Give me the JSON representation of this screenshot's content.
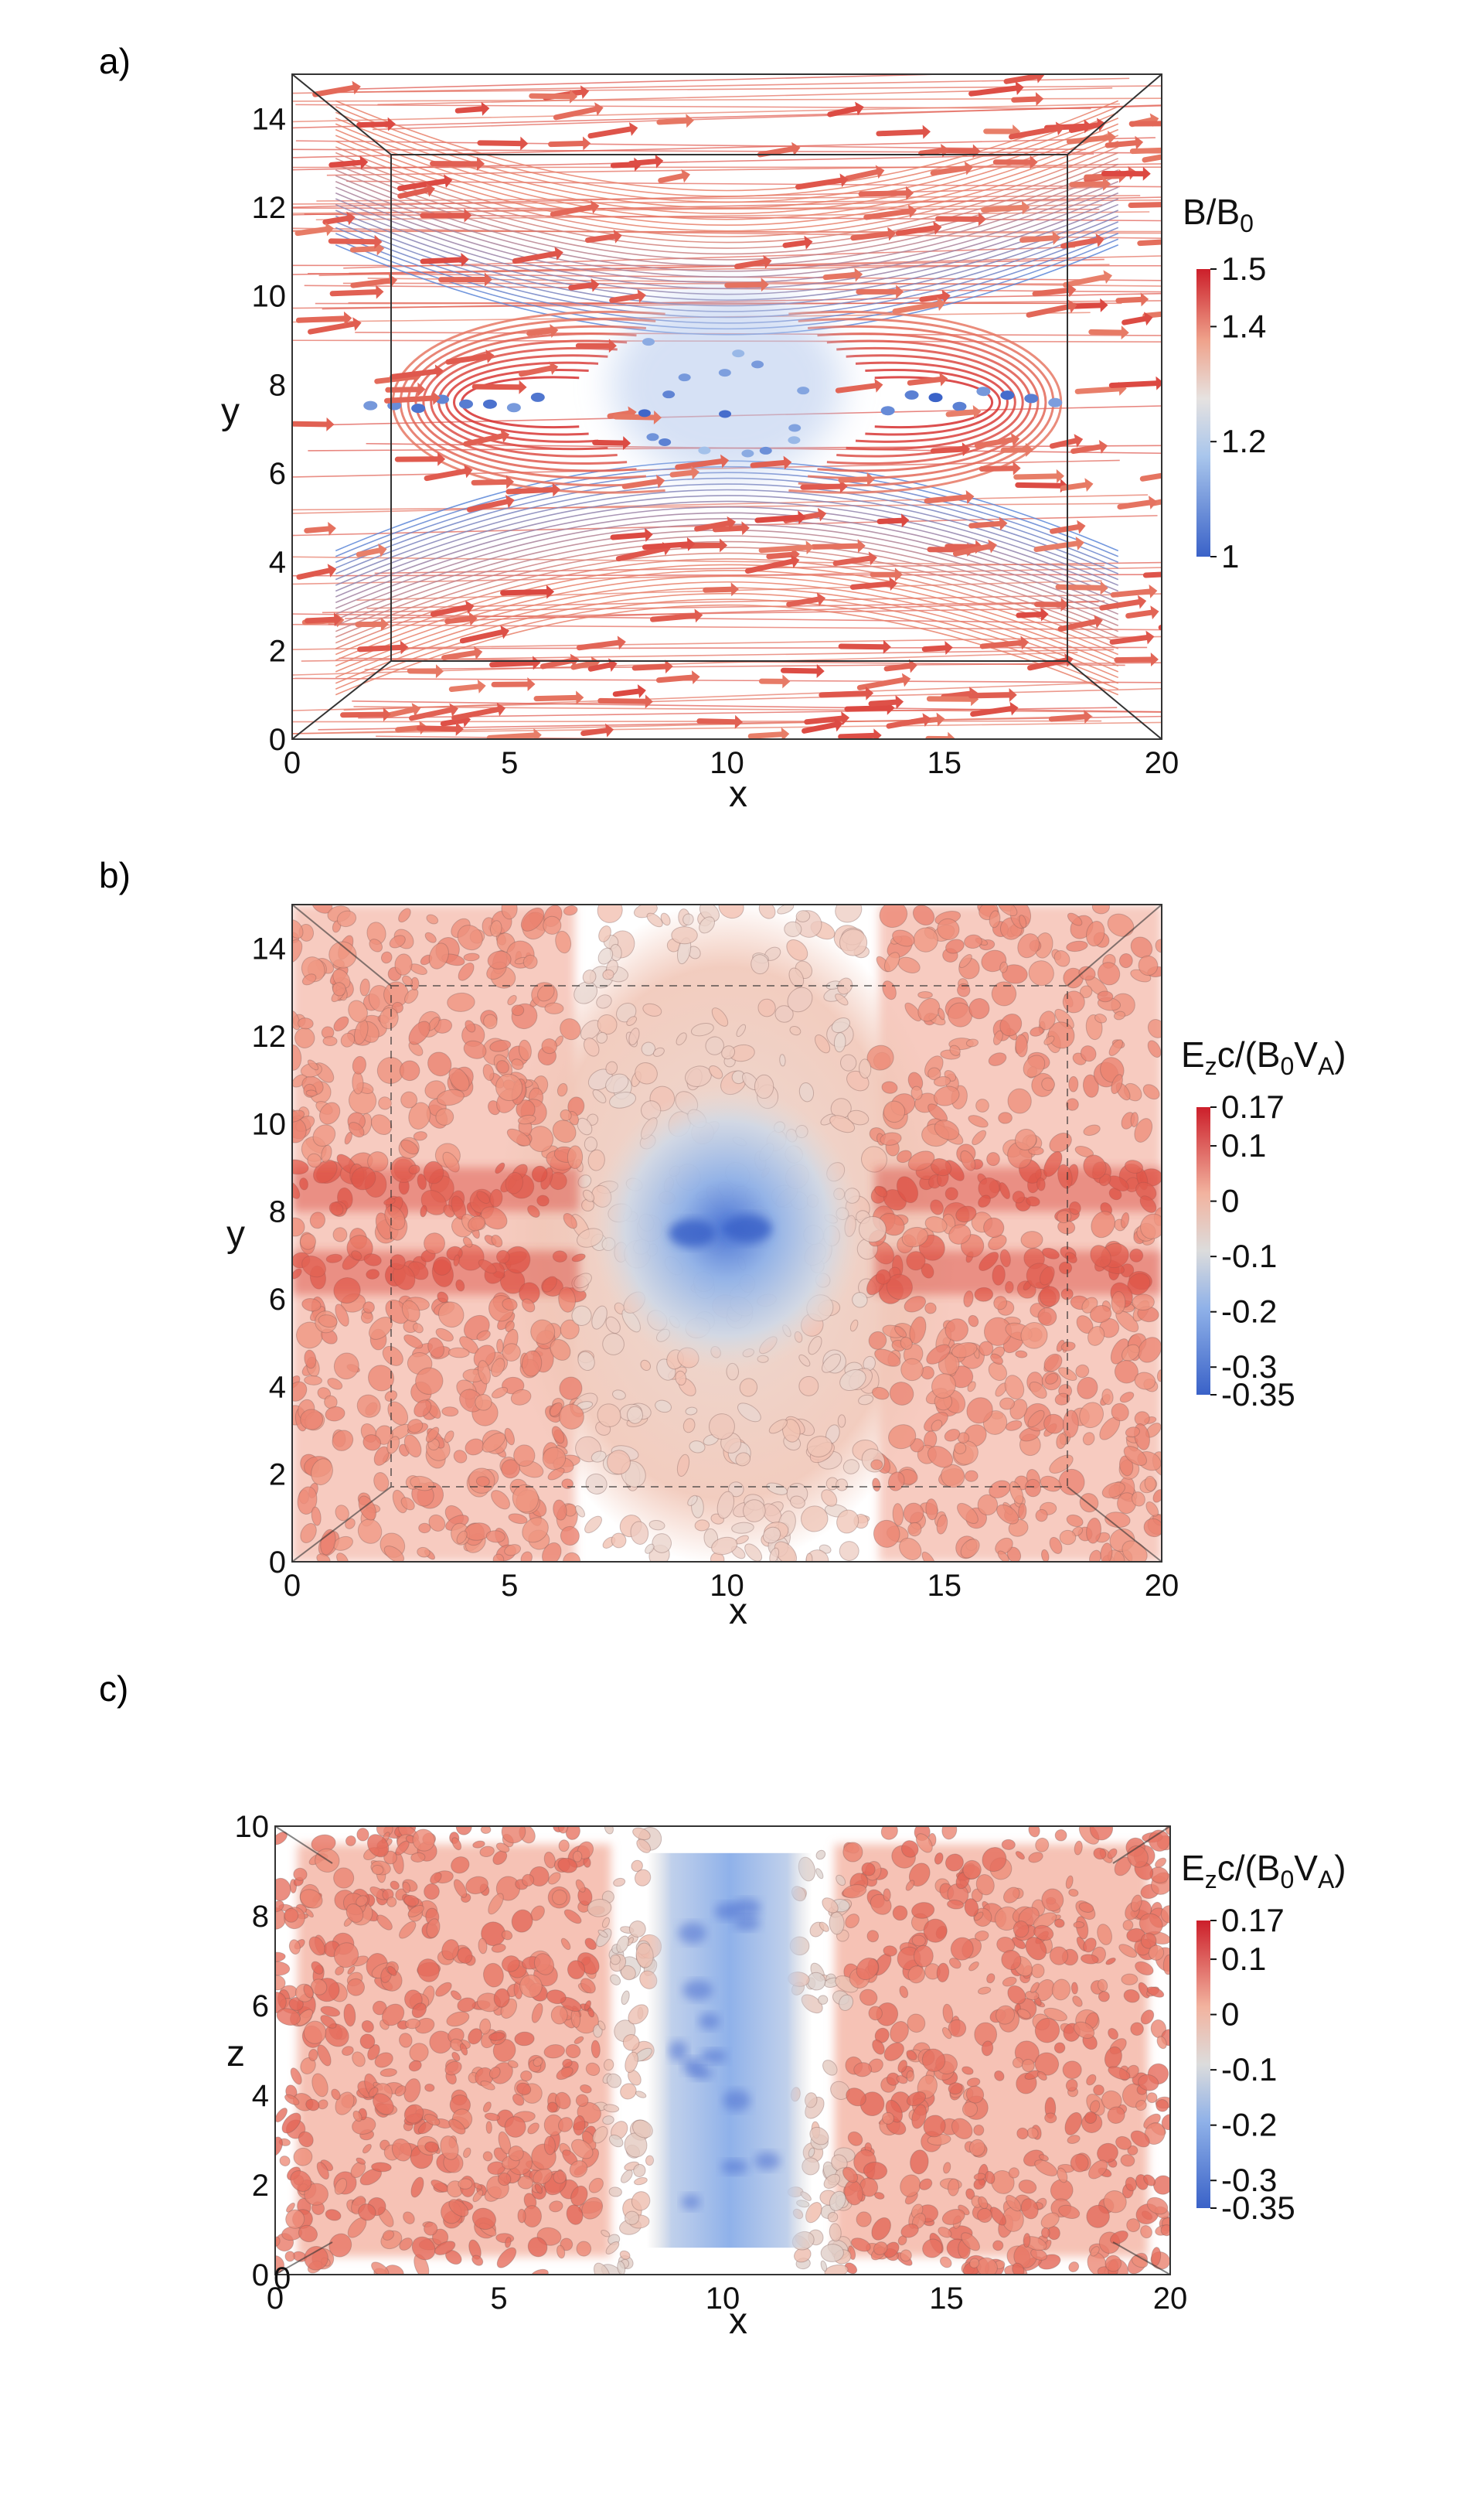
{
  "chart_data": [
    {
      "panel": "a)",
      "type": "vector-field",
      "description_field": "magnetic field streamlines and arrows",
      "xlabel": "x",
      "ylabel": "y",
      "xlim": [
        0,
        20
      ],
      "ylim": [
        0,
        15
      ],
      "xticks": [
        "0",
        "5",
        "10",
        "15",
        "20"
      ],
      "yticks": [
        "0",
        "2",
        "4",
        "6",
        "8",
        "10",
        "12",
        "14"
      ],
      "colorbar": {
        "title_main": "B/B",
        "title_sub": "0",
        "min": 1,
        "max": 1.5,
        "ticks": [
          "1.5",
          "1.4",
          "1.2",
          "1"
        ],
        "tick_values": [
          1.5,
          1.4,
          1.2,
          1.0
        ]
      },
      "x_point": [
        10,
        7.7
      ],
      "islands": [
        {
          "cx": 4.5,
          "cy": 7.6
        },
        {
          "cx": 15.5,
          "cy": 7.6
        }
      ]
    },
    {
      "panel": "b)",
      "type": "isosurface",
      "xlabel": "x",
      "ylabel": "y",
      "xlim": [
        0,
        20
      ],
      "ylim": [
        0,
        15
      ],
      "xticks": [
        "0",
        "5",
        "10",
        "15",
        "20"
      ],
      "yticks": [
        "0",
        "2",
        "4",
        "6",
        "8",
        "10",
        "12",
        "14"
      ],
      "colorbar": {
        "title_main": "E",
        "title_sub1": "z",
        "title_mid": "c/(B",
        "title_sub2": "0",
        "title_mid2": "V",
        "title_sub3": "A",
        "title_end": ")",
        "min": -0.35,
        "max": 0.17,
        "ticks": [
          "0.17",
          "0.1",
          "0",
          "-0.1",
          "-0.2",
          "-0.3",
          "-0.35"
        ],
        "tick_values": [
          0.17,
          0.1,
          0,
          -0.1,
          -0.2,
          -0.3,
          -0.35
        ]
      },
      "negative_region": {
        "x": [
          8,
          12
        ],
        "y": [
          5.5,
          10
        ]
      },
      "blue_peaks": [
        [
          9.2,
          7.5
        ],
        [
          10.5,
          7.6
        ]
      ]
    },
    {
      "panel": "c)",
      "type": "isosurface",
      "xlabel": "x",
      "ylabel": "z",
      "xlim": [
        0,
        20
      ],
      "ylim": [
        0,
        10
      ],
      "xticks": [
        "0",
        "5",
        "10",
        "15",
        "20"
      ],
      "yticks": [
        "0",
        "2",
        "4",
        "6",
        "8",
        "10"
      ],
      "corner_label": "0",
      "colorbar": {
        "title_main": "E",
        "title_sub1": "z",
        "title_mid": "c/(B",
        "title_sub2": "0",
        "title_mid2": "V",
        "title_sub3": "A",
        "title_end": ")",
        "min": -0.35,
        "max": 0.17,
        "ticks": [
          "0.17",
          "0.1",
          "0",
          "-0.1",
          "-0.2",
          "-0.3",
          "-0.35"
        ],
        "tick_values": [
          0.17,
          0.1,
          0,
          -0.1,
          -0.2,
          -0.3,
          -0.35
        ]
      },
      "negative_region": {
        "x": [
          8.5,
          12
        ],
        "y": [
          0.5,
          9.5
        ]
      }
    }
  ],
  "colors": {
    "red": "#d62f2f",
    "salmon": "#e8806a",
    "pink": "#f3c4b6",
    "gray": "#dcdcdc",
    "lightblue": "#a9c6ec",
    "blue": "#3a62c8"
  }
}
